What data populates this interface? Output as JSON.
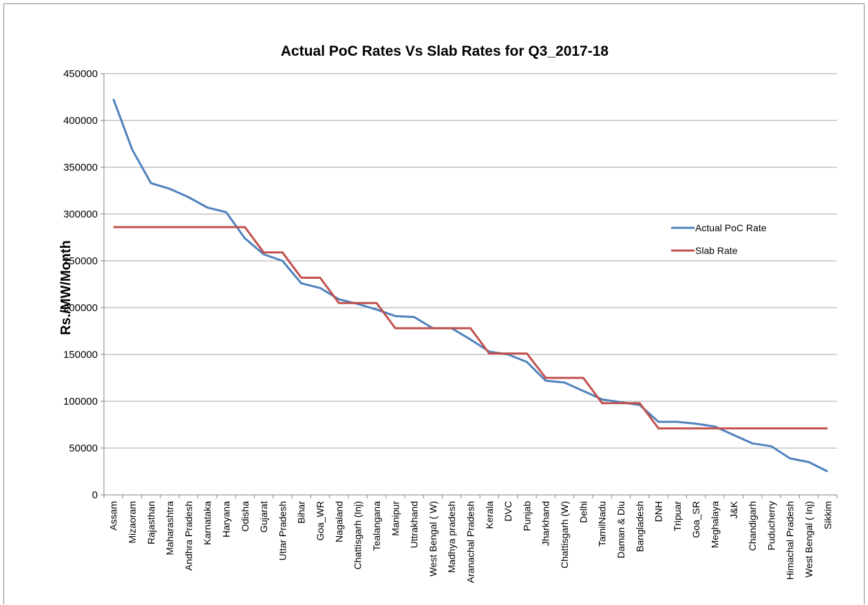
{
  "chart_data": {
    "type": "line",
    "title": "Actual PoC Rates Vs Slab Rates for Q3_2017-18",
    "ylabel": "Rs./MW/Month",
    "xlabel": "",
    "ylim": [
      0,
      450000
    ],
    "yticks": [
      0,
      50000,
      100000,
      150000,
      200000,
      250000,
      300000,
      350000,
      400000,
      450000
    ],
    "grid": true,
    "legend_position": "right",
    "categories": [
      "Assam",
      "Mizaoram",
      "Rajasthan",
      "Maharashtra",
      "Andhra Pradesh",
      "Karnataka",
      "Haryana",
      "Odisha",
      "Gujarat",
      "Uttar Pradesh",
      "Bihar",
      "Goa_WR",
      "Nagaland",
      "Chattisgarh (Inj)",
      "Tealangana",
      "Manipur",
      "Uttrakhand",
      "West Bengal ( W)",
      "Madhya pradesh",
      "Aranachal Pradesh",
      "Kerala",
      "DVC",
      "Punjab",
      "Jharkhand",
      "Chattisgarh (W)",
      "Delhi",
      "TamilNadu",
      "Daman & Diu",
      "Bangladesh",
      "DNH",
      "Tripuar",
      "Goa_SR",
      "Meghalaya",
      "J&K",
      "Chandigarh",
      "Puducherry",
      "Himachal Pradesh",
      "West Bengal ( Inj)",
      "Sikkim"
    ],
    "series": [
      {
        "name": "Actual PoC Rate",
        "color": "#4f81bd",
        "values": [
          423000,
          369000,
          333000,
          327000,
          318000,
          307000,
          302000,
          274000,
          257000,
          250000,
          226000,
          221000,
          209000,
          204000,
          198000,
          191000,
          190000,
          178000,
          178000,
          166000,
          153000,
          150000,
          142000,
          122000,
          120000,
          111000,
          102000,
          99000,
          96000,
          78000,
          78000,
          76000,
          73000,
          64000,
          55000,
          52000,
          39000,
          35000,
          25000
        ]
      },
      {
        "name": "Slab Rate",
        "color": "#c0504d",
        "values": [
          286000,
          286000,
          286000,
          286000,
          286000,
          286000,
          286000,
          286000,
          259000,
          259000,
          232000,
          232000,
          205000,
          205000,
          205000,
          178000,
          178000,
          178000,
          178000,
          178000,
          151000,
          151000,
          151000,
          125000,
          125000,
          125000,
          98000,
          98000,
          98000,
          71000,
          71000,
          71000,
          71000,
          71000,
          71000,
          71000,
          71000,
          71000,
          71000
        ]
      }
    ]
  }
}
